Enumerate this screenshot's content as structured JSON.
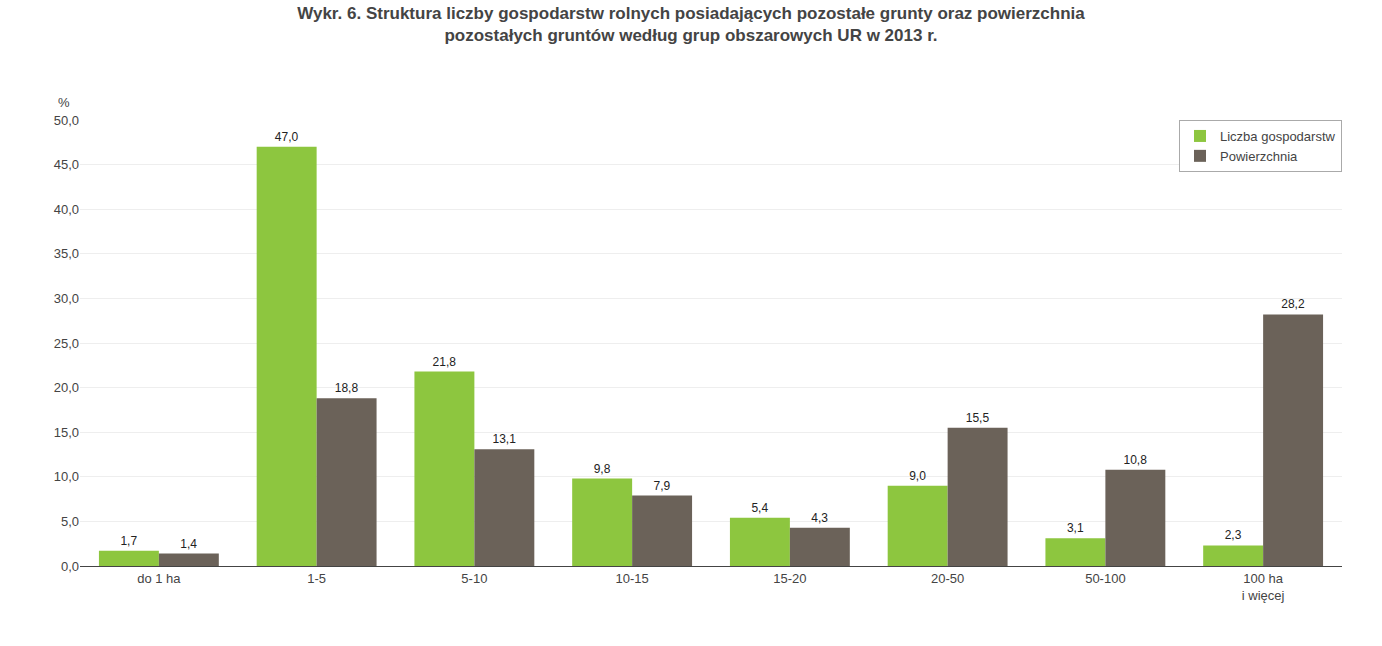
{
  "chart_data": {
    "type": "bar",
    "title": "Wykr. 6. Struktura liczby gospodarstw rolnych posiadających pozostałe grunty oraz powierzchnia\npozostałych gruntów według grup obszarowych UR w 2013 r.",
    "ylabel": "%",
    "categories": [
      "do 1 ha",
      "1-5",
      "5-10",
      "10-15",
      "15-20",
      "20-50",
      "50-100",
      "100 ha\ni więcej"
    ],
    "series": [
      {
        "name": "Liczba gospodarstw",
        "color": "#8dc63f",
        "values": [
          1.7,
          47.0,
          21.8,
          9.8,
          5.4,
          9.0,
          3.1,
          2.3
        ],
        "value_labels": [
          "1,7",
          "47,0",
          "21,8",
          "9,8",
          "5,4",
          "9,0",
          "3,1",
          "2,3"
        ]
      },
      {
        "name": "Powierzchnia",
        "color": "#6b6259",
        "values": [
          1.4,
          18.8,
          13.1,
          7.9,
          4.3,
          15.5,
          10.8,
          28.2
        ],
        "value_labels": [
          "1,4",
          "18,8",
          "13,1",
          "7,9",
          "4,3",
          "15,5",
          "10,8",
          "28,2"
        ]
      }
    ],
    "ylim": [
      0,
      50
    ],
    "yticks": [
      {
        "value": 0.0,
        "label": "0,0"
      },
      {
        "value": 5.0,
        "label": "5,0"
      },
      {
        "value": 10.0,
        "label": "10,0"
      },
      {
        "value": 15.0,
        "label": "15,0"
      },
      {
        "value": 20.0,
        "label": "20,0"
      },
      {
        "value": 25.0,
        "label": "25,0"
      },
      {
        "value": 30.0,
        "label": "30,0"
      },
      {
        "value": 35.0,
        "label": "35,0"
      },
      {
        "value": 40.0,
        "label": "40,0"
      },
      {
        "value": 45.0,
        "label": "45,0"
      },
      {
        "value": 50.0,
        "label": "50,0"
      }
    ],
    "grid": true,
    "legend": "upper right",
    "data_labels": true
  }
}
